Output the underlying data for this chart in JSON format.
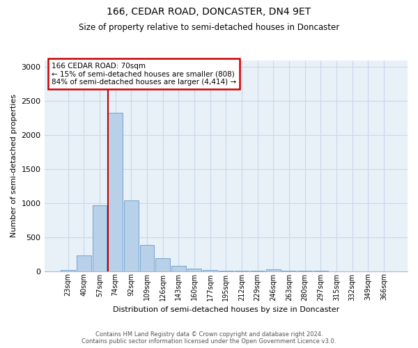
{
  "title": "166, CEDAR ROAD, DONCASTER, DN4 9ET",
  "subtitle": "Size of property relative to semi-detached houses in Doncaster",
  "xlabel": "Distribution of semi-detached houses by size in Doncaster",
  "ylabel": "Number of semi-detached properties",
  "categories": [
    "23sqm",
    "40sqm",
    "57sqm",
    "74sqm",
    "92sqm",
    "109sqm",
    "126sqm",
    "143sqm",
    "160sqm",
    "177sqm",
    "195sqm",
    "212sqm",
    "229sqm",
    "246sqm",
    "263sqm",
    "280sqm",
    "297sqm",
    "315sqm",
    "332sqm",
    "349sqm",
    "366sqm"
  ],
  "values": [
    15,
    230,
    970,
    2330,
    1040,
    385,
    185,
    80,
    40,
    20,
    10,
    5,
    5,
    30,
    5,
    5,
    5,
    0,
    0,
    0,
    0
  ],
  "bar_color": "#b8d0e8",
  "bar_edge_color": "#6699cc",
  "annotation_text": "166 CEDAR ROAD: 70sqm\n← 15% of semi-detached houses are smaller (808)\n84% of semi-detached houses are larger (4,414) →",
  "annotation_box_color": "#ffffff",
  "annotation_border_color": "#cc0000",
  "ylim": [
    0,
    3100
  ],
  "yticks": [
    0,
    500,
    1000,
    1500,
    2000,
    2500,
    3000
  ],
  "footer_line1": "Contains HM Land Registry data © Crown copyright and database right 2024.",
  "footer_line2": "Contains public sector information licensed under the Open Government Licence v3.0.",
  "grid_color": "#c8d8e8",
  "background_color": "#e8f0f8",
  "title_fontsize": 10,
  "subtitle_fontsize": 8.5,
  "tick_fontsize": 7,
  "ylabel_fontsize": 8,
  "xlabel_fontsize": 8,
  "footer_fontsize": 6,
  "red_line_bin": 3,
  "red_line_color": "#bb0000"
}
